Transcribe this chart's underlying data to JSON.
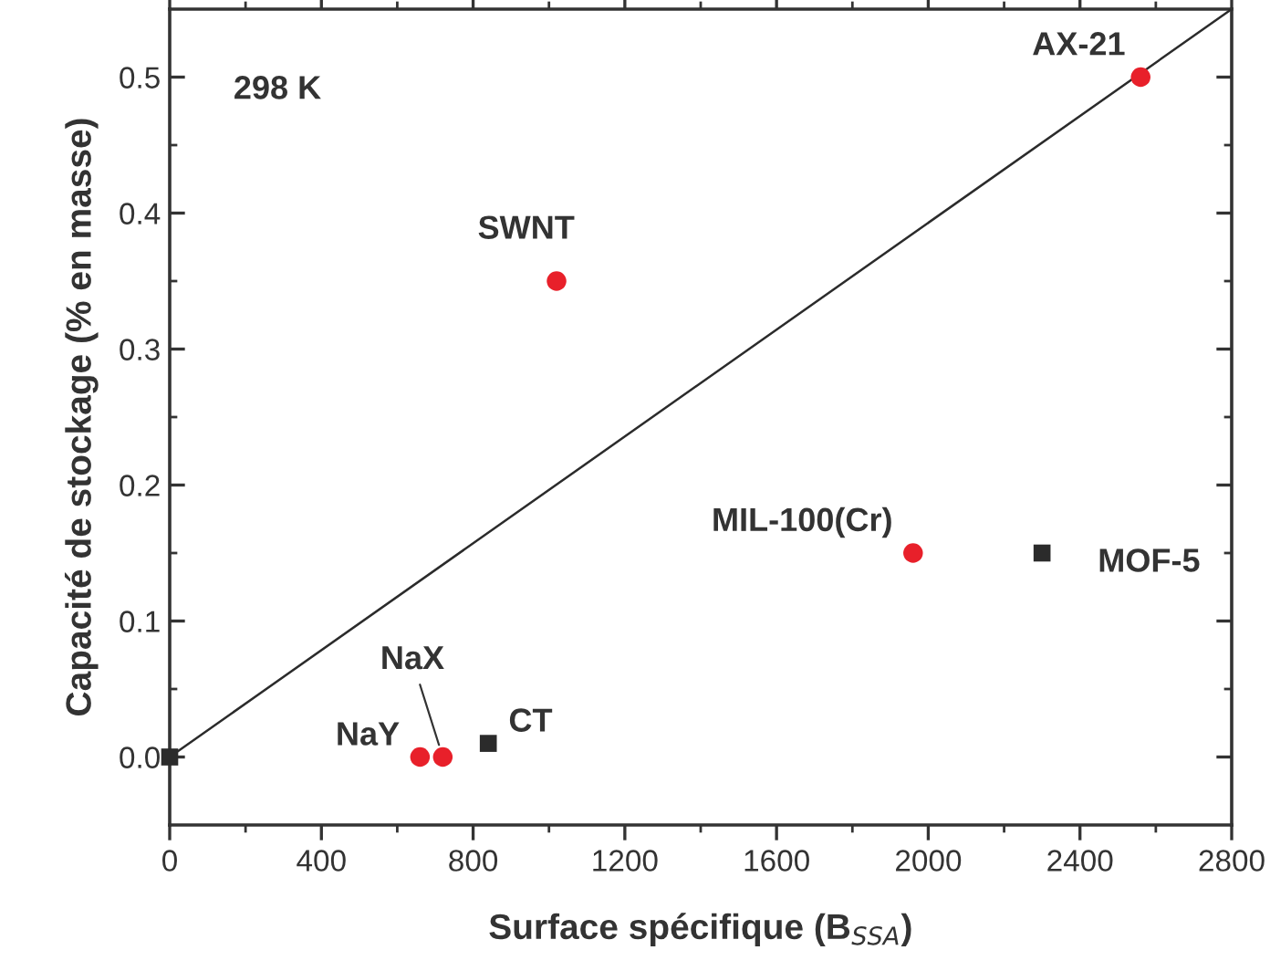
{
  "chart_data": {
    "type": "scatter",
    "xlabel": "Surface spécifique (B$_{SSA}$)",
    "ylabel": "Capacité de stockage (% en masse)",
    "xlim": [
      0,
      2800
    ],
    "xticks": [
      0,
      400,
      800,
      1200,
      1600,
      2000,
      2400,
      2800
    ],
    "ylim": [
      -0.05,
      0.55
    ],
    "yticks": [
      {
        "value": 0,
        "label": "0.0"
      },
      0.1,
      0.2,
      0.3,
      0.4,
      0.5
    ],
    "grid": false,
    "legend": false,
    "series": [
      {
        "color": "#e8202a",
        "marker": "circle",
        "x": [
          2560,
          1020,
          1960,
          660,
          720
        ],
        "values": [
          0.5,
          0.35,
          0.15,
          0.0,
          0.0
        ]
      },
      {
        "color": "#2b2b2b",
        "marker": "square",
        "x": [
          0,
          840,
          2300
        ],
        "values": [
          0.0,
          0.01,
          0.15
        ]
      },
      {
        "type": "line",
        "color": "#2b2b2b",
        "marker": "none",
        "line_style": "solid",
        "x": [
          0,
          2800
        ],
        "values": [
          0.0,
          0.55
        ]
      }
    ],
    "annotations": [
      "298 K",
      {
        "text": "AX-21",
        "x": 2560,
        "y": 0.5
      },
      {
        "text": "SWNT",
        "x": 1020,
        "y": 0.35
      },
      {
        "text": "MIL-100(Cr)",
        "x": 1960,
        "y": 0.15
      },
      {
        "text": "MOF-5",
        "x": 2300,
        "y": 0.15
      },
      {
        "text": "NaY",
        "x": 660,
        "y": 0.0
      },
      {
        "text": "NaX",
        "x": 720,
        "y": 0.0
      },
      {
        "text": "CT",
        "x": 840,
        "y": 0.01
      }
    ]
  }
}
